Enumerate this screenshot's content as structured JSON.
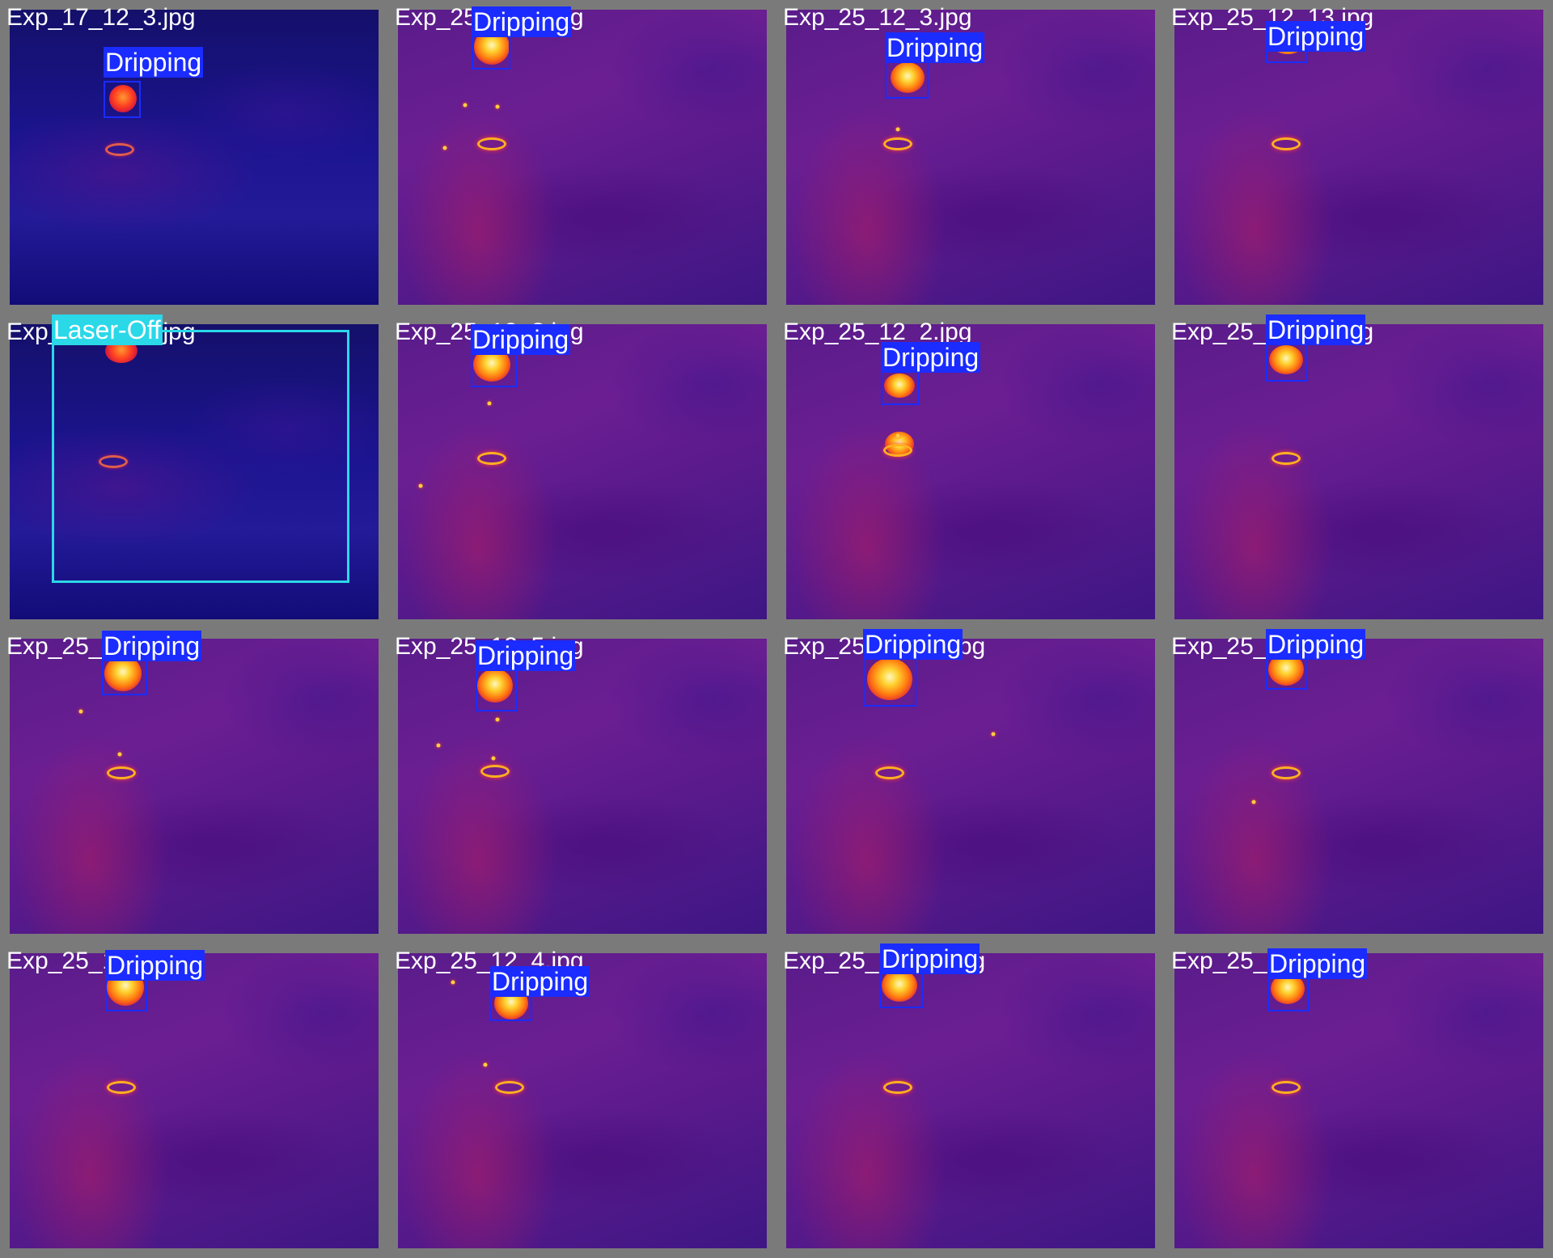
{
  "mosaic": {
    "tiles": [
      {
        "filename": "Exp_17_12_3.jpg",
        "style": "cold",
        "detections": [
          {
            "label": "Dripping",
            "color": "#1a2cff"
          }
        ]
      },
      {
        "filename": "Exp_25_12_?.jpg",
        "style": "warm",
        "detections": [
          {
            "label": "Dripping",
            "color": "#1a2cff"
          }
        ]
      },
      {
        "filename": "Exp_25_12_3.jpg",
        "style": "warm",
        "detections": [
          {
            "label": "Dripping",
            "color": "#1a2cff"
          }
        ]
      },
      {
        "filename": "Exp_25_12_13.jpg",
        "style": "warm",
        "detections": [
          {
            "label": "Dripping",
            "color": "#1a2cff"
          }
        ]
      },
      {
        "filename": "Exp_25_13_4.jpg",
        "style": "cold",
        "detections": [
          {
            "label": "Laser-Off",
            "color": "#2ad8e8"
          }
        ]
      },
      {
        "filename": "Exp_25_12_?.jpg",
        "style": "warm",
        "detections": [
          {
            "label": "Dripping",
            "color": "#1a2cff"
          }
        ]
      },
      {
        "filename": "Exp_25_12_2.jpg",
        "style": "warm",
        "detections": [
          {
            "label": "Dripping",
            "color": "#1a2cff"
          }
        ]
      },
      {
        "filename": "Exp_25_12_12.jpg",
        "style": "warm",
        "detections": [
          {
            "label": "Dripping",
            "color": "#1a2cff"
          }
        ]
      },
      {
        "filename": "Exp_25_12_?.jpg",
        "style": "warm",
        "detections": [
          {
            "label": "Dripping",
            "color": "#1a2cff"
          }
        ]
      },
      {
        "filename": "Exp_25_12_5.jpg",
        "style": "warm",
        "detections": [
          {
            "label": "Dripping",
            "color": "#1a2cff"
          }
        ]
      },
      {
        "filename": "Exp_25_12_15.jpg",
        "style": "warm",
        "detections": [
          {
            "label": "Dripping",
            "color": "#1a2cff"
          }
        ]
      },
      {
        "filename": "Exp_25_12_?.jpg",
        "style": "warm",
        "detections": [
          {
            "label": "Dripping",
            "color": "#1a2cff"
          }
        ]
      },
      {
        "filename": "Exp_25_12_?.jpg",
        "style": "warm",
        "detections": [
          {
            "label": "Dripping",
            "color": "#1a2cff"
          }
        ]
      },
      {
        "filename": "Exp_25_12_4.jpg",
        "style": "warm",
        "detections": [
          {
            "label": "Dripping",
            "color": "#1a2cff"
          }
        ]
      },
      {
        "filename": "Exp_25_12_14.jpg",
        "style": "warm",
        "detections": [
          {
            "label": "Dripping",
            "color": "#1a2cff"
          }
        ]
      },
      {
        "filename": "Exp_25_12_?.jpg",
        "style": "warm",
        "detections": [
          {
            "label": "Dripping",
            "color": "#1a2cff"
          }
        ]
      }
    ]
  }
}
